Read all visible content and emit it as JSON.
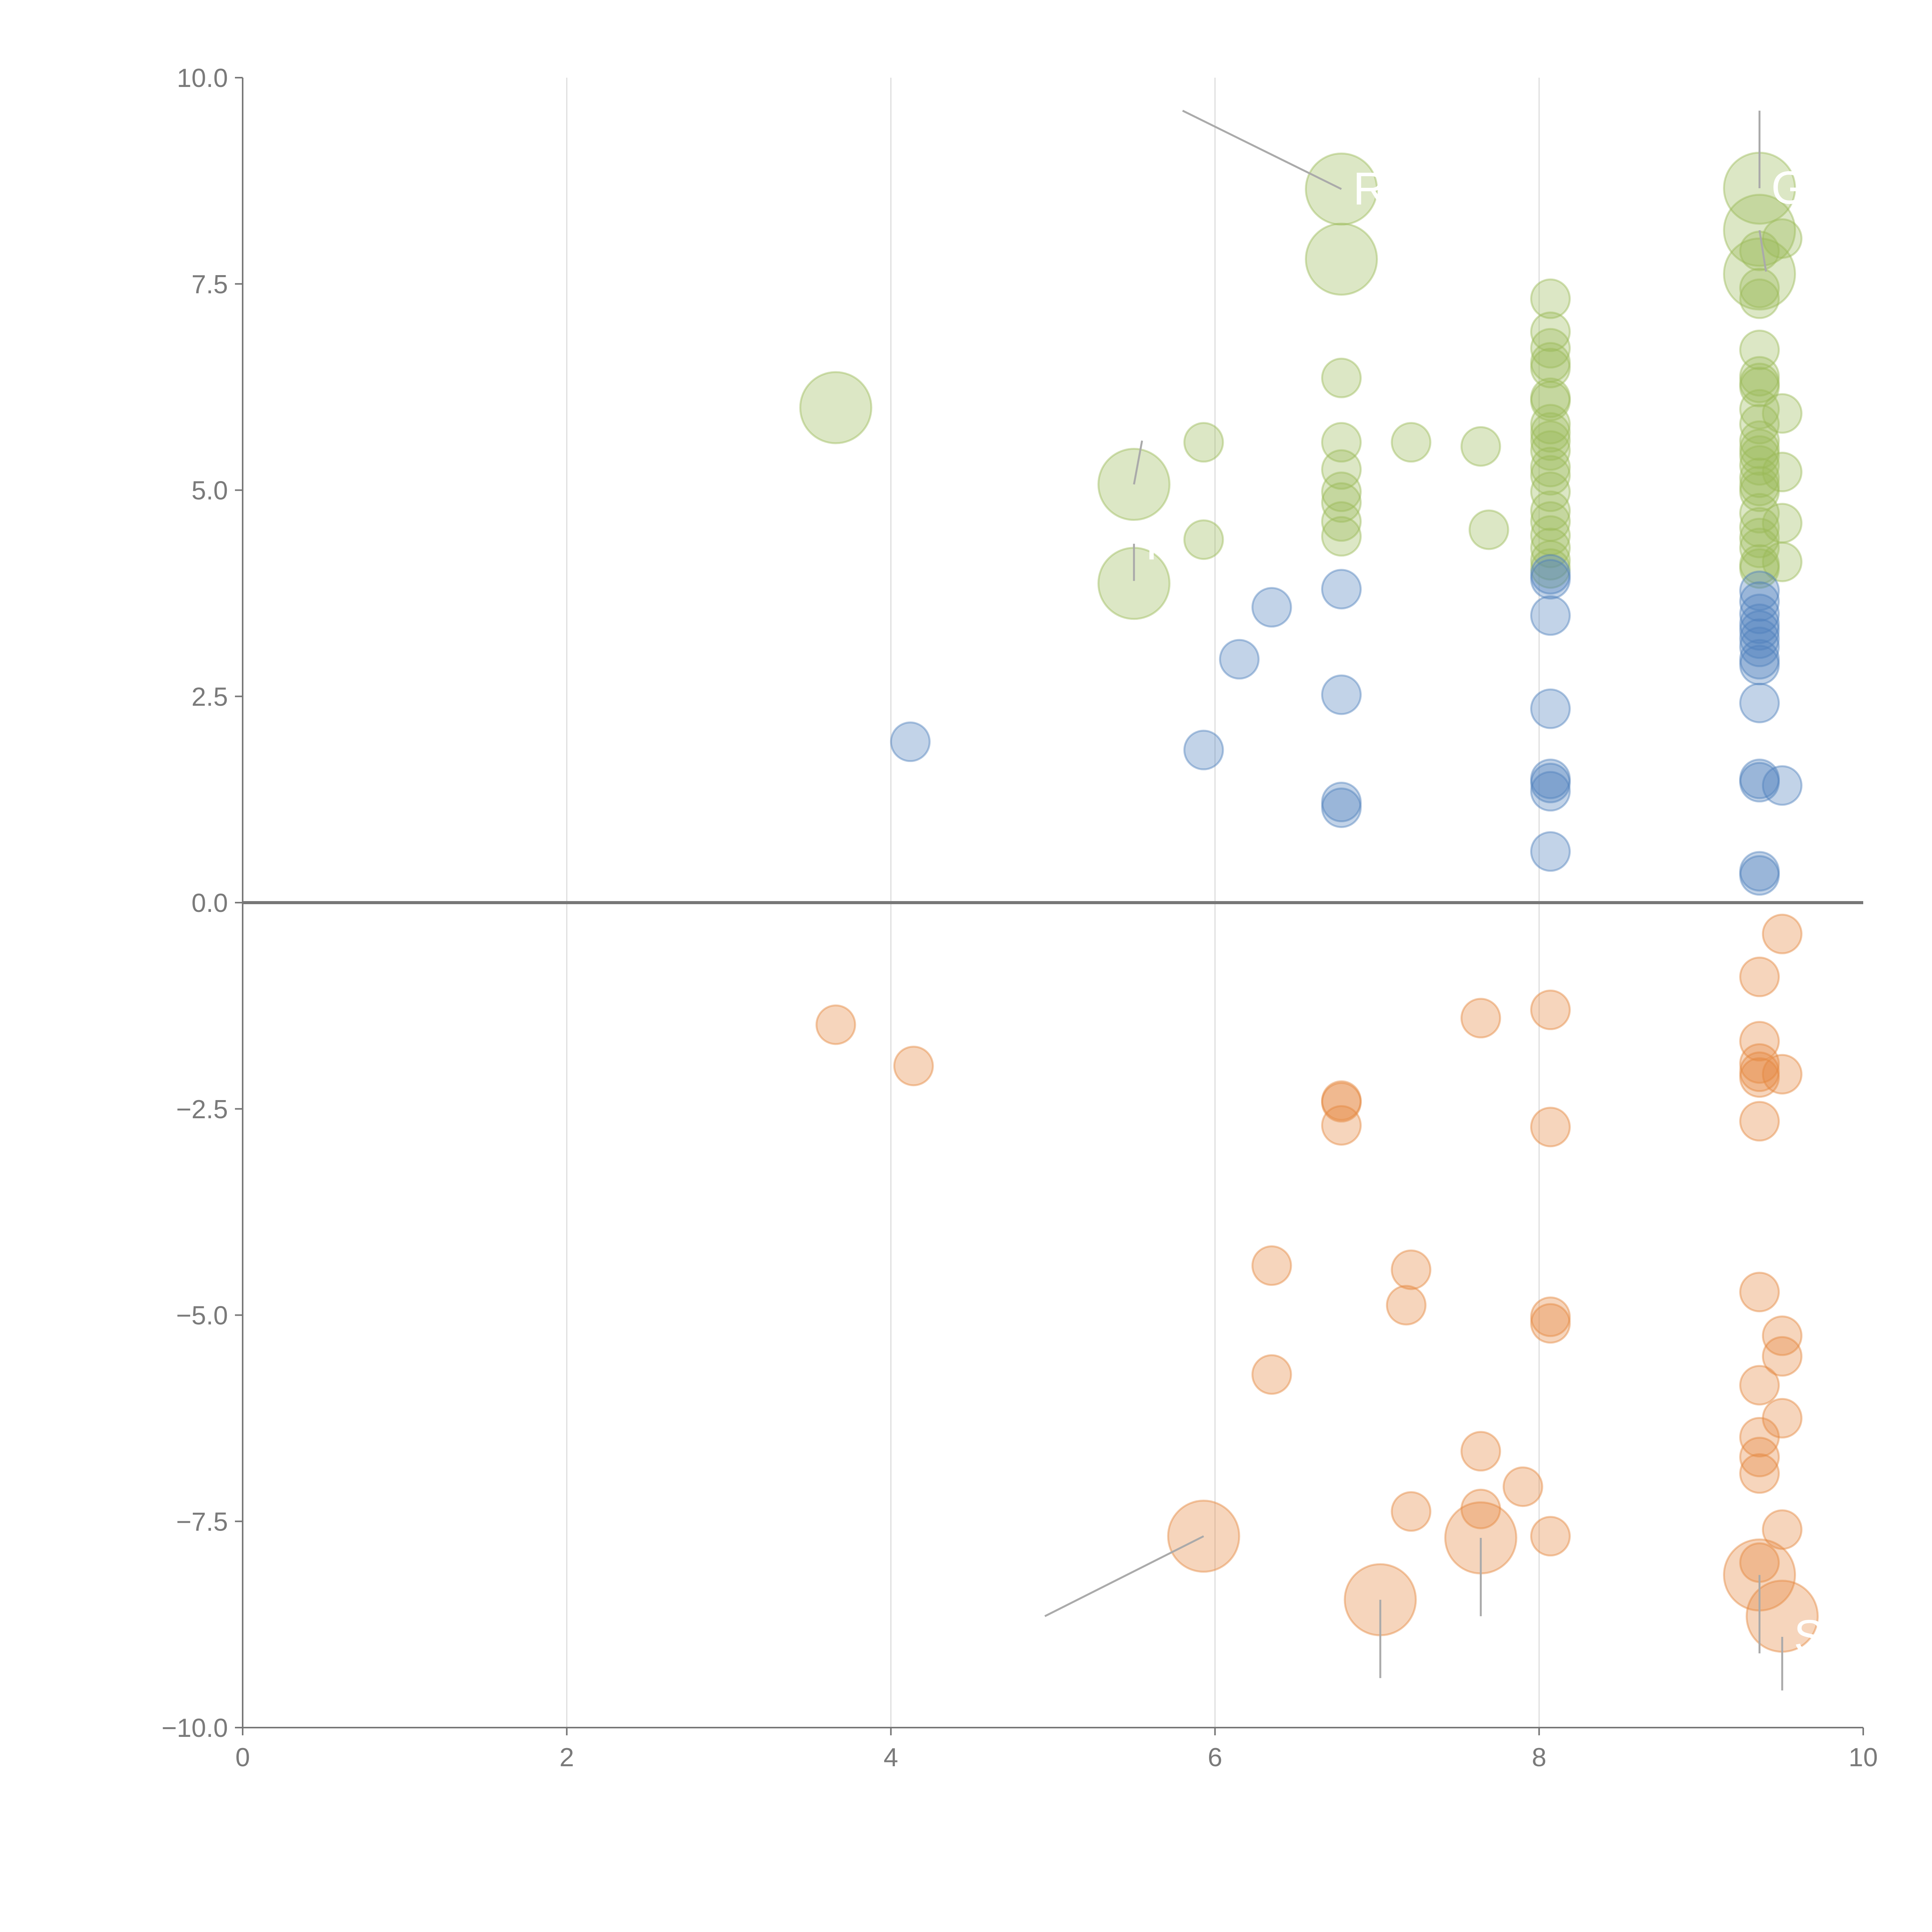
{
  "chart_data": {
    "type": "scatter",
    "variant": "bubble",
    "title": "",
    "xlabel": "",
    "ylabel": "",
    "xlim": [
      0,
      10
    ],
    "ylim": [
      -10,
      10
    ],
    "x_ticks": [
      "0",
      "2",
      "4",
      "6",
      "8",
      "10"
    ],
    "y_ticks": [
      "10.0",
      "7.5",
      "5.0",
      "2.5",
      "0.0",
      "−2.5",
      "−5.0",
      "−7.5",
      "−10.0"
    ],
    "grid": "vertical",
    "legend": "none",
    "colors": {
      "green": "#9bbb59",
      "blue": "#4f81bd",
      "orange": "#e5883e"
    },
    "series": [
      {
        "name": "green",
        "color": "#9bbb59",
        "points": [
          [
            6.78,
            8.65,
            3
          ],
          [
            6.78,
            7.8,
            3
          ],
          [
            3.66,
            6.0,
            3
          ],
          [
            5.5,
            5.07,
            3
          ],
          [
            5.5,
            3.87,
            3
          ],
          [
            5.93,
            5.58,
            1
          ],
          [
            5.93,
            4.4,
            1
          ],
          [
            6.78,
            6.36,
            1
          ],
          [
            6.78,
            5.58,
            1
          ],
          [
            6.78,
            5.25,
            1
          ],
          [
            6.78,
            4.98,
            1
          ],
          [
            6.78,
            4.85,
            1
          ],
          [
            6.78,
            4.62,
            1
          ],
          [
            6.78,
            4.44,
            1
          ],
          [
            7.21,
            5.58,
            1
          ],
          [
            7.64,
            5.53,
            1
          ],
          [
            7.69,
            4.52,
            1
          ],
          [
            8.07,
            7.32,
            1
          ],
          [
            8.07,
            6.92,
            1
          ],
          [
            8.07,
            6.72,
            1
          ],
          [
            8.07,
            6.55,
            1
          ],
          [
            8.07,
            6.48,
            1
          ],
          [
            8.07,
            6.12,
            1
          ],
          [
            8.07,
            6.08,
            1
          ],
          [
            8.07,
            5.8,
            1
          ],
          [
            8.07,
            5.7,
            1
          ],
          [
            8.07,
            5.6,
            1
          ],
          [
            8.07,
            5.48,
            1
          ],
          [
            8.07,
            5.28,
            1
          ],
          [
            8.07,
            5.18,
            1
          ],
          [
            8.07,
            4.98,
            1
          ],
          [
            8.07,
            4.75,
            1
          ],
          [
            8.07,
            4.62,
            1
          ],
          [
            8.07,
            4.45,
            1
          ],
          [
            8.07,
            4.3,
            1
          ],
          [
            8.07,
            4.15,
            1
          ],
          [
            8.07,
            4.05,
            1
          ],
          [
            9.36,
            8.66,
            3
          ],
          [
            9.36,
            8.15,
            3
          ],
          [
            9.36,
            7.62,
            3
          ],
          [
            9.36,
            7.9,
            1
          ],
          [
            9.36,
            7.45,
            1
          ],
          [
            9.36,
            7.32,
            1
          ],
          [
            9.36,
            6.7,
            1
          ],
          [
            9.36,
            6.38,
            1
          ],
          [
            9.36,
            6.3,
            1
          ],
          [
            9.36,
            6.25,
            1
          ],
          [
            9.36,
            5.98,
            1
          ],
          [
            9.36,
            5.8,
            1
          ],
          [
            9.36,
            5.6,
            1
          ],
          [
            9.36,
            5.5,
            1
          ],
          [
            9.36,
            5.42,
            1
          ],
          [
            9.36,
            5.3,
            1
          ],
          [
            9.36,
            5.15,
            1
          ],
          [
            9.36,
            5.05,
            1
          ],
          [
            9.36,
            4.98,
            1
          ],
          [
            9.36,
            4.72,
            1
          ],
          [
            9.36,
            4.55,
            1
          ],
          [
            9.36,
            4.42,
            1
          ],
          [
            9.36,
            4.3,
            1
          ],
          [
            9.36,
            4.1,
            1
          ],
          [
            9.36,
            4.05,
            1
          ],
          [
            9.5,
            8.05,
            1
          ],
          [
            9.5,
            5.93,
            1
          ],
          [
            9.5,
            5.22,
            1
          ],
          [
            9.5,
            4.6,
            1
          ],
          [
            9.5,
            4.13,
            1
          ]
        ]
      },
      {
        "name": "blue",
        "color": "#4f81bd",
        "points": [
          [
            4.12,
            1.95,
            1
          ],
          [
            5.93,
            1.85,
            1
          ],
          [
            6.15,
            2.95,
            1
          ],
          [
            6.35,
            3.58,
            1
          ],
          [
            6.78,
            3.8,
            1
          ],
          [
            6.78,
            2.52,
            1
          ],
          [
            6.78,
            1.22,
            1
          ],
          [
            6.78,
            1.15,
            1
          ],
          [
            8.07,
            3.98,
            1
          ],
          [
            8.07,
            3.92,
            1
          ],
          [
            8.07,
            3.48,
            1
          ],
          [
            8.07,
            2.35,
            1
          ],
          [
            8.07,
            1.5,
            1
          ],
          [
            8.07,
            1.45,
            1
          ],
          [
            8.07,
            1.35,
            1
          ],
          [
            8.07,
            0.62,
            1
          ],
          [
            9.36,
            3.78,
            1
          ],
          [
            9.36,
            3.65,
            1
          ],
          [
            9.36,
            3.5,
            1
          ],
          [
            9.36,
            3.38,
            1
          ],
          [
            9.36,
            3.3,
            1
          ],
          [
            9.36,
            3.2,
            1
          ],
          [
            9.36,
            3.1,
            1
          ],
          [
            9.36,
            2.95,
            1
          ],
          [
            9.36,
            2.88,
            1
          ],
          [
            9.36,
            2.42,
            1
          ],
          [
            9.36,
            1.5,
            1
          ],
          [
            9.36,
            1.46,
            1
          ],
          [
            9.36,
            0.38,
            1
          ],
          [
            9.36,
            0.33,
            1
          ],
          [
            9.5,
            1.42,
            1
          ]
        ]
      },
      {
        "name": "orange",
        "color": "#e5883e",
        "points": [
          [
            3.66,
            -1.48,
            1
          ],
          [
            4.14,
            -1.98,
            1
          ],
          [
            5.93,
            -7.68,
            3
          ],
          [
            6.35,
            -4.4,
            1
          ],
          [
            6.35,
            -5.72,
            1
          ],
          [
            6.78,
            -2.4,
            1
          ],
          [
            6.78,
            -2.42,
            1
          ],
          [
            6.78,
            -2.7,
            1
          ],
          [
            7.02,
            -8.45,
            3
          ],
          [
            7.18,
            -4.88,
            1
          ],
          [
            7.21,
            -4.45,
            1
          ],
          [
            7.21,
            -7.38,
            1
          ],
          [
            7.64,
            -1.4,
            1
          ],
          [
            7.64,
            -6.65,
            1
          ],
          [
            7.64,
            -7.35,
            1
          ],
          [
            7.64,
            -7.7,
            3
          ],
          [
            7.9,
            -7.08,
            1
          ],
          [
            8.07,
            -1.3,
            1
          ],
          [
            8.07,
            -2.72,
            1
          ],
          [
            8.07,
            -5.02,
            1
          ],
          [
            8.07,
            -5.1,
            1
          ],
          [
            8.07,
            -7.68,
            1
          ],
          [
            9.36,
            -0.9,
            1
          ],
          [
            9.36,
            -1.68,
            1
          ],
          [
            9.36,
            -1.95,
            1
          ],
          [
            9.36,
            -2.05,
            1
          ],
          [
            9.36,
            -2.12,
            1
          ],
          [
            9.36,
            -2.65,
            1
          ],
          [
            9.36,
            -4.72,
            1
          ],
          [
            9.36,
            -5.85,
            1
          ],
          [
            9.36,
            -6.48,
            1
          ],
          [
            9.36,
            -6.72,
            1
          ],
          [
            9.36,
            -6.92,
            1
          ],
          [
            9.36,
            -8.0,
            1
          ],
          [
            9.36,
            -8.15,
            3
          ],
          [
            9.5,
            -0.38,
            1
          ],
          [
            9.5,
            -2.08,
            1
          ],
          [
            9.5,
            -5.25,
            1
          ],
          [
            9.5,
            -5.5,
            1
          ],
          [
            9.5,
            -6.25,
            1
          ],
          [
            9.5,
            -7.6,
            1
          ],
          [
            9.5,
            -8.65,
            3
          ]
        ]
      }
    ],
    "annotations": [
      {
        "text": "R",
        "x": 6.78,
        "y": 8.65,
        "line_to": [
          5.8,
          9.6
        ],
        "color": "#ffffff"
      },
      {
        "text": "G",
        "x": 9.36,
        "y": 8.66,
        "line_to": [
          9.36,
          9.6
        ],
        "color": "#ffffff"
      },
      {
        "text": "R",
        "x": 5.5,
        "y": 4.35,
        "line_to": [
          5.5,
          3.9
        ],
        "color": "#ffffff"
      },
      {
        "text": "Sk",
        "x": 9.5,
        "y": -8.9,
        "line_to": [
          9.5,
          -9.55
        ],
        "color": "#ffffff"
      }
    ],
    "leader_lines": [
      {
        "from": [
          5.93,
          -7.68
        ],
        "to": [
          4.95,
          -8.65
        ]
      },
      {
        "from": [
          7.02,
          -8.45
        ],
        "to": [
          7.02,
          -9.4
        ]
      },
      {
        "from": [
          7.64,
          -7.7
        ],
        "to": [
          7.64,
          -8.65
        ]
      },
      {
        "from": [
          9.36,
          -8.15
        ],
        "to": [
          9.36,
          -9.1
        ]
      },
      {
        "from": [
          5.5,
          5.07
        ],
        "to": [
          5.55,
          5.6
        ]
      },
      {
        "from": [
          9.36,
          8.15
        ],
        "to": [
          9.4,
          7.65
        ]
      }
    ]
  }
}
